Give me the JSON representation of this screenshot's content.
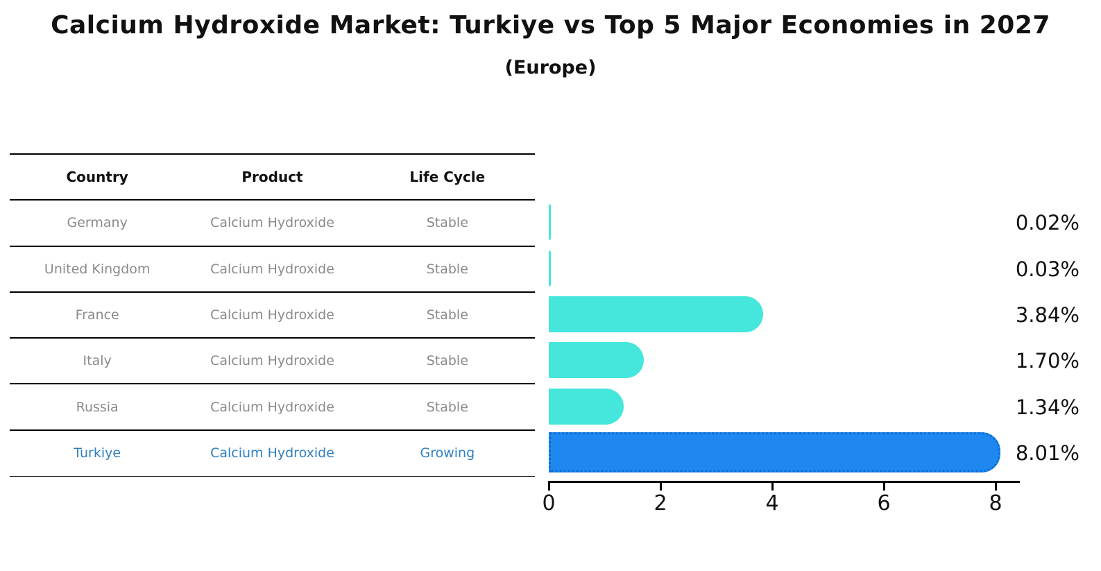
{
  "header": {
    "title": "Calcium Hydroxide Market: Turkiye vs Top 5 Major Economies in 2027",
    "subtitle": "(Europe)"
  },
  "table": {
    "columns": [
      "Country",
      "Product",
      "Life Cycle"
    ],
    "rows": [
      {
        "country": "Germany",
        "product": "Calcium Hydroxide",
        "life_cycle": "Stable",
        "highlighted": false
      },
      {
        "country": "United Kingdom",
        "product": "Calcium Hydroxide",
        "life_cycle": "Stable",
        "highlighted": false
      },
      {
        "country": "France",
        "product": "Calcium Hydroxide",
        "life_cycle": "Stable",
        "highlighted": false
      },
      {
        "country": "Italy",
        "product": "Calcium Hydroxide",
        "life_cycle": "Stable",
        "highlighted": false
      },
      {
        "country": "Russia",
        "product": "Calcium Hydroxide",
        "life_cycle": "Stable",
        "highlighted": false
      },
      {
        "country": "Turkiye",
        "product": "Calcium Hydroxide",
        "life_cycle": "Growing",
        "highlighted": true
      }
    ]
  },
  "chart_data": {
    "type": "bar",
    "orientation": "horizontal",
    "title": "Calcium Hydroxide Market: Turkiye vs Top 5 Major Economies in 2027",
    "subtitle": "(Europe)",
    "categories": [
      "Germany",
      "United Kingdom",
      "France",
      "Italy",
      "Russia",
      "Turkiye"
    ],
    "values": [
      0.02,
      0.03,
      3.84,
      1.7,
      1.34,
      8.01
    ],
    "value_labels": [
      "0.02%",
      "0.03%",
      "3.84%",
      "1.70%",
      "1.34%",
      "8.01%"
    ],
    "x_ticks": [
      0,
      2,
      4,
      6,
      8
    ],
    "xlim": [
      0,
      8.45
    ],
    "highlight_index": 5,
    "grid": false,
    "legend": "none"
  },
  "colors": {
    "bar": "#45E6DC",
    "highlight_bar": "#1E87F0",
    "highlight_bar_dots": "#0C6CD4",
    "highlight_text": "#2E7FC1",
    "table_text": "#8A8A8A",
    "header_text": "#111111",
    "axis": "#000000",
    "background": "#FFFFFF"
  }
}
